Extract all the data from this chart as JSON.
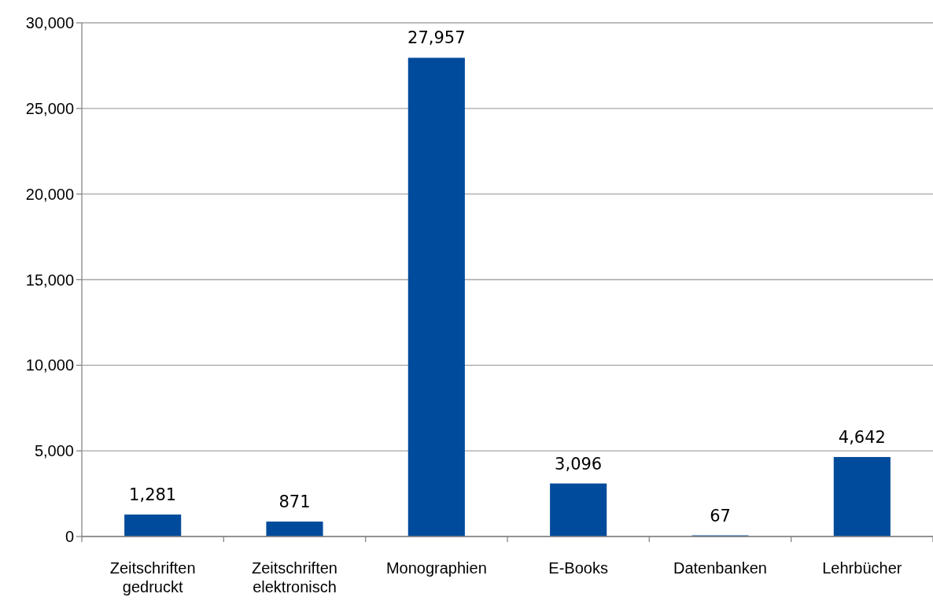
{
  "chart_data": {
    "type": "bar",
    "categories": [
      "Zeitschriften gedruckt",
      "Zeitschriften elektronisch",
      "Monographien",
      "E-Books",
      "Datenbanken",
      "Lehrbücher"
    ],
    "values": [
      1281,
      871,
      27957,
      3096,
      67,
      4642
    ],
    "value_labels": [
      "1,281",
      "871",
      "27,957",
      "3,096",
      "67",
      "4,642"
    ],
    "color": "#004b9b",
    "ylim": [
      0,
      30000
    ],
    "yticks": [
      {
        "value": 0,
        "label": "0"
      },
      {
        "value": 5000,
        "label": "5,000"
      },
      {
        "value": 10000,
        "label": "10,000"
      },
      {
        "value": 15000,
        "label": "15,000"
      },
      {
        "value": 20000,
        "label": "20,000"
      },
      {
        "value": 25000,
        "label": "25,000"
      },
      {
        "value": 30000,
        "label": "30,000"
      }
    ],
    "grid": "y"
  }
}
